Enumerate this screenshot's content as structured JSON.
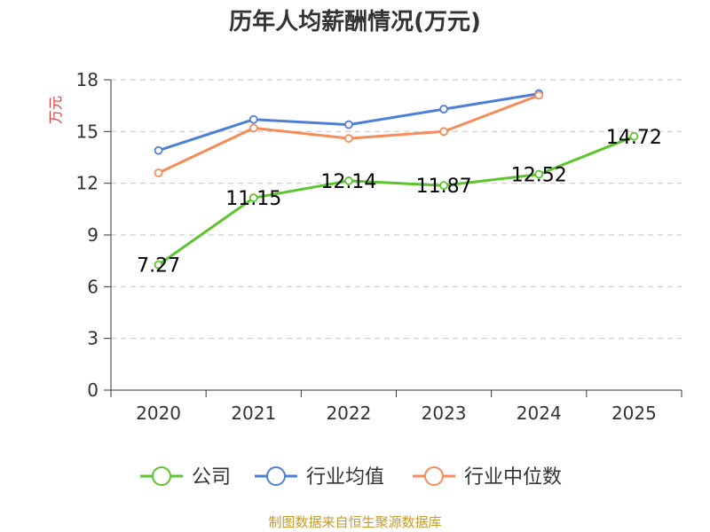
{
  "chart_data": {
    "type": "line",
    "title": "历年人均薪酬情况(万元)",
    "ylabel": "万元",
    "xlabel": "",
    "categories": [
      "2020",
      "2021",
      "2022",
      "2023",
      "2024",
      "2025"
    ],
    "y_ticks": [
      0,
      3,
      6,
      9,
      12,
      15,
      18
    ],
    "ylim": [
      0,
      18
    ],
    "grid": true,
    "legend_position": "bottom",
    "series": [
      {
        "name": "公司",
        "color": "#5cc42c",
        "labels": true,
        "values": [
          7.27,
          11.15,
          12.14,
          11.87,
          12.52,
          14.72
        ],
        "value_labels": [
          "7.27",
          "11.15",
          "12.14",
          "11.87",
          "12.52",
          "14.72"
        ]
      },
      {
        "name": "行业均值",
        "color": "#4e7fd8",
        "labels": false,
        "values": [
          13.9,
          15.7,
          15.4,
          16.3,
          17.2,
          null
        ]
      },
      {
        "name": "行业中位数",
        "color": "#f58c5a",
        "labels": false,
        "values": [
          12.6,
          15.2,
          14.6,
          15.0,
          17.1,
          null
        ]
      }
    ]
  },
  "footer": {
    "source": "制图数据来自恒生聚源数据库"
  },
  "colors": {
    "axis": "#333333",
    "grid": "#cccccc",
    "ylabel": "#e03c3c",
    "source": "#c49a2c"
  }
}
